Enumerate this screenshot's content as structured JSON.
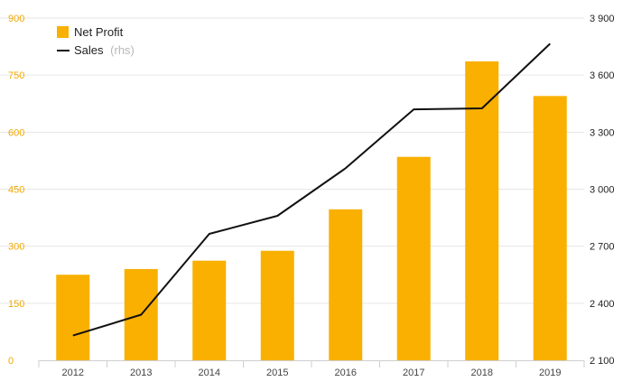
{
  "chart_data": {
    "type": "bar",
    "categories": [
      "2012",
      "2013",
      "2014",
      "2015",
      "2016",
      "2017",
      "2018",
      "2019"
    ],
    "series": [
      {
        "name": "Net Profit",
        "type": "bar",
        "axis": "left",
        "color": "#f9b000",
        "values": [
          225,
          240,
          262,
          288,
          397,
          535,
          786,
          695
        ]
      },
      {
        "name": "Sales",
        "name_suffix": "(rhs)",
        "type": "line",
        "axis": "right",
        "color": "#111111",
        "values": [
          2230,
          2340,
          2765,
          2860,
          3110,
          3420,
          3425,
          3765
        ]
      }
    ],
    "left_axis": {
      "ylim": [
        0,
        900
      ],
      "ticks": [
        0,
        150,
        300,
        450,
        600,
        750,
        900
      ],
      "tick_labels": [
        "0",
        "150",
        "300",
        "450",
        "600",
        "750",
        "900"
      ],
      "color": "#f2a900"
    },
    "right_axis": {
      "ylim": [
        2100,
        3900
      ],
      "ticks": [
        2100,
        2400,
        2700,
        3000,
        3300,
        3600,
        3900
      ],
      "tick_labels": [
        "2 100",
        "2 400",
        "2 700",
        "3 000",
        "3 300",
        "3 600",
        "3 900"
      ],
      "color": "#222222"
    },
    "grid": true,
    "legend_position": "top-left"
  }
}
